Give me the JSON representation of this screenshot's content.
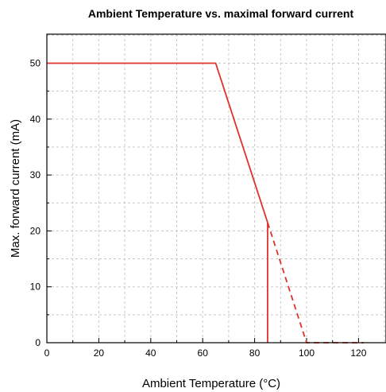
{
  "chart_data": {
    "type": "line",
    "title": "Ambient Temperature vs. maximal forward current",
    "xlabel": "Ambient Temperature (°C)",
    "ylabel": "Max. forward current (mA)",
    "xlim": [
      0,
      130
    ],
    "ylim": [
      0,
      55
    ],
    "xticks": [
      0,
      20,
      40,
      60,
      80,
      100,
      120
    ],
    "yticks": [
      0,
      10,
      20,
      30,
      40,
      50
    ],
    "grid": true,
    "line_color": "#e0312d",
    "series": [
      {
        "style": "solid",
        "points": [
          [
            0,
            50
          ],
          [
            65,
            50
          ],
          [
            85,
            21.5
          ]
        ]
      },
      {
        "style": "solid",
        "points": [
          [
            85,
            21.5
          ],
          [
            85,
            0
          ]
        ]
      },
      {
        "style": "dashed",
        "points": [
          [
            85,
            21.5
          ],
          [
            100,
            0
          ],
          [
            122,
            0
          ]
        ]
      }
    ]
  }
}
